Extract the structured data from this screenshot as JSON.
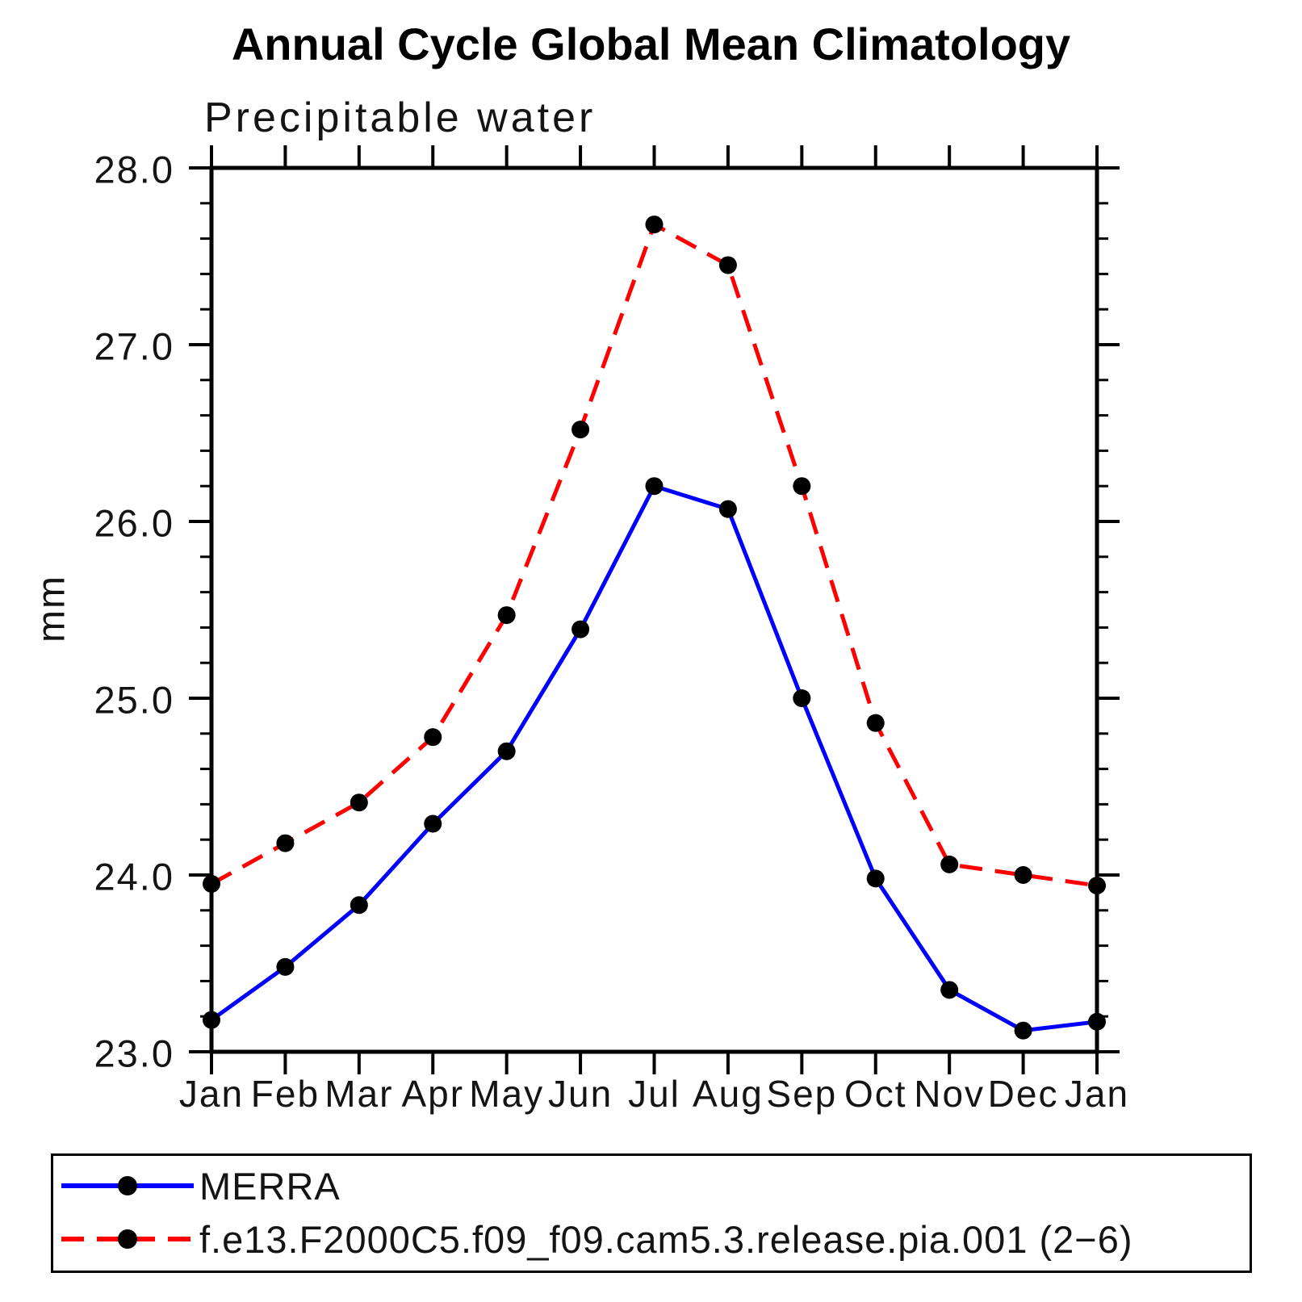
{
  "title": "Annual Cycle Global Mean Climatology",
  "subtitle": "Precipitable water",
  "y_axis_label": "mm",
  "colors": {
    "axis": "#000000",
    "marker": "#000000",
    "merra_line": "#0000ff",
    "model_line": "#ff0000",
    "text": "#141414"
  },
  "chart_data": {
    "type": "line",
    "title": "Annual Cycle Global Mean Climatology",
    "subtitle": "Precipitable water",
    "ylabel": "mm",
    "xlabel": "",
    "grid": false,
    "ylim": [
      23.0,
      28.0
    ],
    "y_major_step": 1.0,
    "y_minor_step": 0.2,
    "y_tick_labels": [
      "28.0",
      "27.0",
      "26.0",
      "25.0",
      "24.0",
      "23.0"
    ],
    "x_tick_labels": [
      "Jan",
      "Feb",
      "Mar",
      "Apr",
      "May",
      "Jun",
      "Jul",
      "Aug",
      "Sep",
      "Oct",
      "Nov",
      "Dec",
      "Jan"
    ],
    "legend_position": "bottom-left box",
    "marker": "filled-circle",
    "marker_color": "#000000",
    "series": [
      {
        "name": "MERRA",
        "color": "#0000ff",
        "line_style": "solid",
        "values": [
          23.18,
          23.48,
          23.83,
          24.29,
          24.7,
          25.39,
          26.2,
          26.07,
          25.0,
          23.98,
          23.35,
          23.12,
          23.17
        ]
      },
      {
        "name": "f.e13.F2000C5.f09_f09.cam5.3.release.pia.001 (2−6)",
        "color": "#ff0000",
        "line_style": "dashed",
        "values": [
          23.95,
          24.18,
          24.41,
          24.78,
          25.47,
          26.52,
          27.68,
          27.45,
          26.2,
          24.86,
          24.06,
          24.0,
          23.94
        ]
      }
    ]
  }
}
